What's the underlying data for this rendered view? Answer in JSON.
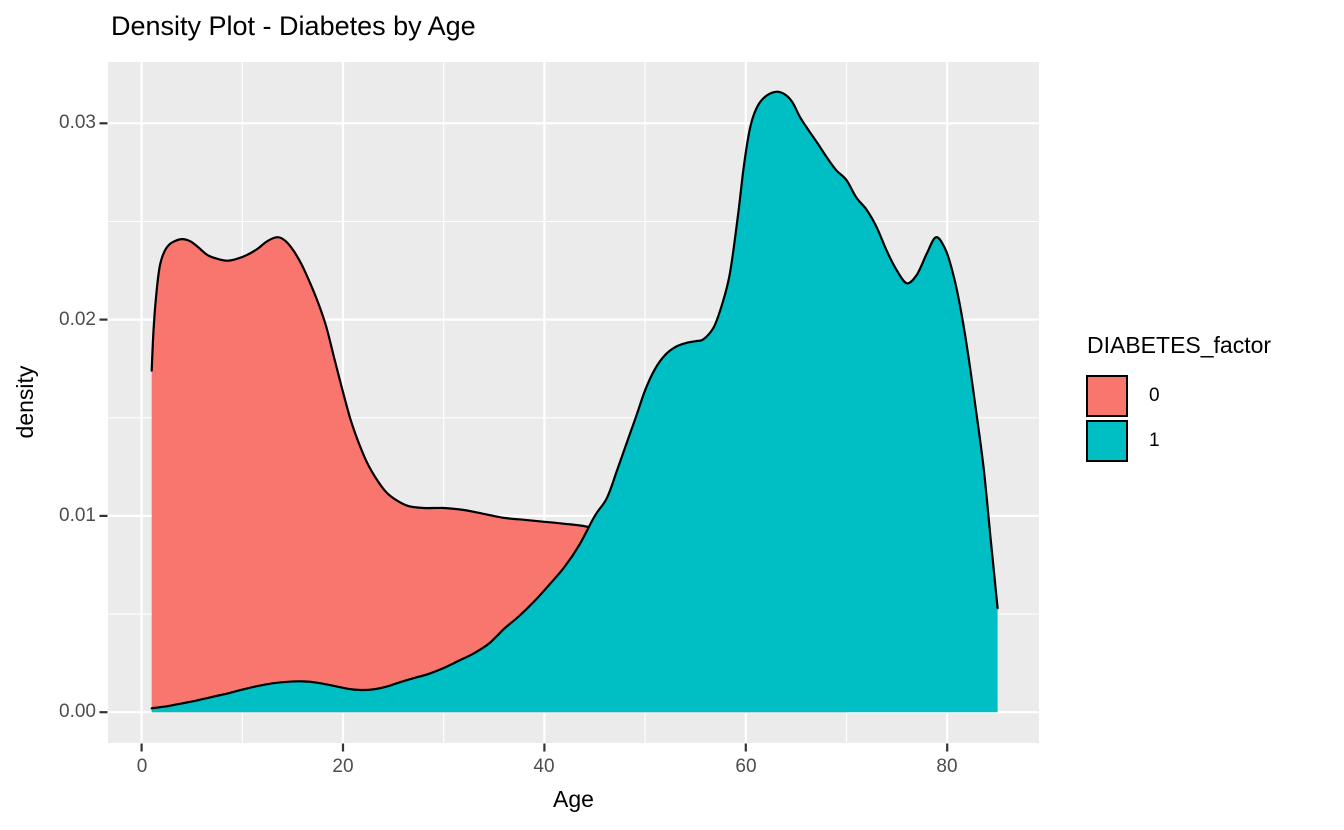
{
  "title": "Density Plot - Diabetes by Age",
  "axes": {
    "x": {
      "title": "Age",
      "tick_labels": [
        "0",
        "20",
        "40",
        "60",
        "80"
      ]
    },
    "y": {
      "title": "density",
      "tick_labels": [
        "0.00",
        "0.01",
        "0.02",
        "0.03"
      ]
    }
  },
  "legend": {
    "title": "DIABETES_factor",
    "items": [
      {
        "label": "0",
        "color": "#F8766D"
      },
      {
        "label": "1",
        "color": "#00BFC4"
      }
    ]
  },
  "colors": {
    "panel_background": "#EBEBEB",
    "grid_major": "#FFFFFF",
    "grid_minor": "#FFFFFF",
    "tick_mark": "#333333",
    "tick_text": "#4D4D4D",
    "curve_outline": "#000000",
    "series_0_fill": "#F8766D",
    "series_1_fill": "#00BFC4"
  },
  "chart_data": {
    "type": "area",
    "subtype": "density",
    "title": "Density Plot - Diabetes by Age",
    "xlabel": "Age",
    "ylabel": "density",
    "xlim": [
      -3.4,
      89.2
    ],
    "ylim": [
      0,
      0.0331
    ],
    "x_major_breaks": [
      0,
      20,
      40,
      60,
      80
    ],
    "x_minor_breaks": [
      10,
      30,
      50,
      70
    ],
    "y_major_breaks": [
      0,
      0.01,
      0.02,
      0.03
    ],
    "y_minor_breaks": [
      0.005,
      0.015,
      0.025
    ],
    "grid": true,
    "legend_position": "right",
    "legend_title": "DIABETES_factor",
    "series": [
      {
        "name": "0",
        "fill": "#F8766D",
        "outline": "#000000",
        "peaks": [
          {
            "age": 4,
            "density": 0.0241
          },
          {
            "age": 13.5,
            "density": 0.0242
          }
        ],
        "points": [
          [
            1.0,
            0.0174
          ],
          [
            1.2,
            0.0196
          ],
          [
            1.5,
            0.0215
          ],
          [
            1.8,
            0.0227
          ],
          [
            2.2,
            0.0234
          ],
          [
            2.7,
            0.0238
          ],
          [
            3.3,
            0.024
          ],
          [
            4.0,
            0.0241
          ],
          [
            4.8,
            0.024
          ],
          [
            5.6,
            0.0237
          ],
          [
            6.5,
            0.0233
          ],
          [
            7.5,
            0.0231
          ],
          [
            8.5,
            0.023
          ],
          [
            9.5,
            0.0231
          ],
          [
            10.5,
            0.0233
          ],
          [
            11.5,
            0.0236
          ],
          [
            12.5,
            0.024
          ],
          [
            13.5,
            0.0242
          ],
          [
            14.3,
            0.024
          ],
          [
            15.1,
            0.0235
          ],
          [
            15.9,
            0.0228
          ],
          [
            16.7,
            0.0219
          ],
          [
            17.5,
            0.0209
          ],
          [
            18.3,
            0.0197
          ],
          [
            19.1,
            0.0181
          ],
          [
            19.9,
            0.0165
          ],
          [
            20.7,
            0.015
          ],
          [
            21.5,
            0.0138
          ],
          [
            22.4,
            0.0127
          ],
          [
            23.3,
            0.0119
          ],
          [
            24.3,
            0.0112
          ],
          [
            25.3,
            0.0108
          ],
          [
            26.5,
            0.0105
          ],
          [
            28.0,
            0.0104
          ],
          [
            30.0,
            0.0104
          ],
          [
            32.0,
            0.0103
          ],
          [
            34.0,
            0.0101
          ],
          [
            36.0,
            0.0099
          ],
          [
            38.0,
            0.0098
          ],
          [
            40.0,
            0.0097
          ],
          [
            42.0,
            0.0096
          ],
          [
            44.6,
            0.0094
          ],
          [
            46.5,
            0.0088
          ],
          [
            48.0,
            0.0079
          ],
          [
            50.0,
            0.0062
          ],
          [
            52.0,
            0.0046
          ],
          [
            54.0,
            0.0032
          ],
          [
            56.5,
            0.0019
          ],
          [
            59.0,
            0.001
          ],
          [
            62.0,
            0.0005
          ],
          [
            66.0,
            0.0002
          ],
          [
            70.0,
            0.0001
          ]
        ]
      },
      {
        "name": "1",
        "fill": "#00BFC4",
        "outline": "#000000",
        "peaks": [
          {
            "age": 62.9,
            "density": 0.0316
          },
          {
            "age": 78.9,
            "density": 0.0242
          }
        ],
        "points": [
          [
            1.0,
            0.0002
          ],
          [
            2.5,
            0.0003
          ],
          [
            4.0,
            0.00045
          ],
          [
            5.5,
            0.0006
          ],
          [
            7.0,
            0.00078
          ],
          [
            8.5,
            0.00095
          ],
          [
            10.0,
            0.00115
          ],
          [
            11.5,
            0.00133
          ],
          [
            13.0,
            0.00147
          ],
          [
            14.5,
            0.00155
          ],
          [
            16.0,
            0.00157
          ],
          [
            17.5,
            0.0015
          ],
          [
            19.0,
            0.00135
          ],
          [
            20.5,
            0.00119
          ],
          [
            21.8,
            0.00113
          ],
          [
            23.0,
            0.00116
          ],
          [
            24.3,
            0.0013
          ],
          [
            25.6,
            0.00152
          ],
          [
            27.0,
            0.00173
          ],
          [
            28.5,
            0.00195
          ],
          [
            30.0,
            0.00225
          ],
          [
            31.5,
            0.00262
          ],
          [
            33.0,
            0.003
          ],
          [
            34.5,
            0.0035
          ],
          [
            36.0,
            0.00425
          ],
          [
            37.5,
            0.0049
          ],
          [
            39.0,
            0.00565
          ],
          [
            40.5,
            0.0065
          ],
          [
            42.0,
            0.0074
          ],
          [
            43.5,
            0.00855
          ],
          [
            45.0,
            0.01
          ],
          [
            46.2,
            0.0109
          ],
          [
            47.2,
            0.0123
          ],
          [
            48.3,
            0.0139
          ],
          [
            49.2,
            0.0152
          ],
          [
            50.0,
            0.0164
          ],
          [
            51.0,
            0.0175
          ],
          [
            52.0,
            0.0182
          ],
          [
            53.0,
            0.0186
          ],
          [
            54.0,
            0.0188
          ],
          [
            55.0,
            0.0189
          ],
          [
            55.8,
            0.019
          ],
          [
            56.8,
            0.0196
          ],
          [
            57.6,
            0.0207
          ],
          [
            58.4,
            0.0223
          ],
          [
            59.2,
            0.0252
          ],
          [
            59.8,
            0.0278
          ],
          [
            60.4,
            0.0297
          ],
          [
            61.0,
            0.0307
          ],
          [
            61.8,
            0.0313
          ],
          [
            62.9,
            0.0316
          ],
          [
            63.8,
            0.0315
          ],
          [
            64.6,
            0.0311
          ],
          [
            65.4,
            0.0303
          ],
          [
            66.3,
            0.0296
          ],
          [
            67.1,
            0.029
          ],
          [
            68.0,
            0.0283
          ],
          [
            69.0,
            0.0276
          ],
          [
            70.0,
            0.0271
          ],
          [
            71.0,
            0.0262
          ],
          [
            72.0,
            0.0256
          ],
          [
            73.0,
            0.0247
          ],
          [
            74.0,
            0.0235
          ],
          [
            75.0,
            0.0225
          ],
          [
            76.0,
            0.02185
          ],
          [
            77.0,
            0.0223
          ],
          [
            78.0,
            0.0234
          ],
          [
            78.9,
            0.0242
          ],
          [
            79.8,
            0.0236
          ],
          [
            80.5,
            0.0225
          ],
          [
            81.2,
            0.0209
          ],
          [
            82.0,
            0.0185
          ],
          [
            82.8,
            0.0156
          ],
          [
            83.6,
            0.0125
          ],
          [
            84.3,
            0.0089
          ],
          [
            85.0,
            0.0053
          ]
        ]
      }
    ]
  }
}
